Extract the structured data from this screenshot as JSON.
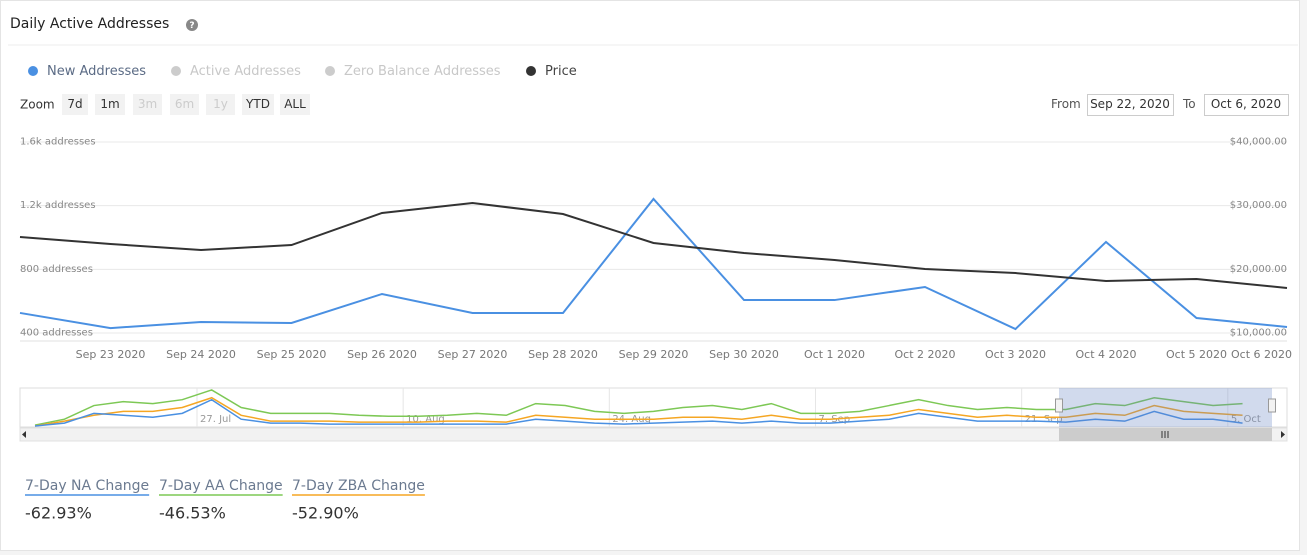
{
  "header": {
    "title": "Daily Active Addresses"
  },
  "range_selector": {
    "label": "Zoom",
    "buttons": [
      {
        "label": "7d",
        "enabled": true
      },
      {
        "label": "1m",
        "enabled": true
      },
      {
        "label": "3m",
        "enabled": false
      },
      {
        "label": "6m",
        "enabled": false
      },
      {
        "label": "1y",
        "enabled": false
      },
      {
        "label": "YTD",
        "enabled": true
      },
      {
        "label": "ALL",
        "enabled": true
      }
    ],
    "from_label": "From",
    "from": "Sep 22, 2020",
    "to_label": "To",
    "to": "Oct 6, 2020"
  },
  "chart_data": {
    "type": "line",
    "categories": [
      null,
      "Sep 23 2020",
      "Sep 24 2020",
      "Sep 25 2020",
      "Sep 26 2020",
      "Sep 27 2020",
      "Sep 28 2020",
      "Sep 29 2020",
      "Sep 30 2020",
      "Oct 1 2020",
      "Oct 2 2020",
      "Oct 3 2020",
      "Oct 4 2020",
      "Oct 5 2020",
      "Oct 6 2020"
    ],
    "series": [
      {
        "name": "New Addresses",
        "color": "#4a90e2",
        "visible": true,
        "values": [
          526,
          431,
          469,
          463,
          645,
          526,
          526,
          1242,
          607,
          607,
          689,
          425,
          972,
          494,
          438
        ]
      },
      {
        "name": "Active Addresses",
        "color": "#cccccc",
        "visible": false
      },
      {
        "name": "Zero Balance Addresses",
        "color": "#cccccc",
        "visible": false
      },
      {
        "name": "Price",
        "color": "#333333",
        "visible": true,
        "axis": "y2",
        "values": [
          25080,
          23980,
          23040,
          23820,
          28850,
          30420,
          28690,
          24140,
          22570,
          21470,
          20050,
          19420,
          18170,
          18480,
          17070
        ]
      }
    ],
    "ylim": [
      400,
      1600
    ],
    "yticks": [
      {
        "value": 400,
        "label": "400 addresses"
      },
      {
        "value": 800,
        "label": "800 addresses"
      },
      {
        "value": 1200,
        "label": "1.2k addresses"
      },
      {
        "value": 1600,
        "label": "1.6k addresses"
      }
    ],
    "y2lim": [
      10000,
      40000
    ],
    "y2ticks": [
      {
        "value": 10000,
        "label": "$10,000.00"
      },
      {
        "value": 20000,
        "label": "$20,000.00"
      },
      {
        "value": 30000,
        "label": "$30,000.00"
      },
      {
        "value": 40000,
        "label": "$40,000.00"
      }
    ],
    "grid": true
  },
  "navigator": {
    "type": "line",
    "ylim": [
      0,
      40
    ],
    "xlim": [
      0,
      41
    ],
    "xticks": [
      {
        "value": 5.5,
        "label": "27. Jul"
      },
      {
        "value": 12.5,
        "label": "10. Aug"
      },
      {
        "value": 19.5,
        "label": "24. Aug"
      },
      {
        "value": 26.5,
        "label": "7. Sep"
      },
      {
        "value": 33.5,
        "label": "21. Sep"
      },
      {
        "value": 40.5,
        "label": "5. Oct"
      }
    ],
    "series": [
      {
        "color": "#7dc855",
        "values": [
          2,
          8,
          22,
          26,
          24,
          28,
          38,
          20,
          14,
          14,
          14,
          12,
          11,
          11,
          12,
          14,
          12,
          24,
          22,
          16,
          14,
          16,
          20,
          22,
          18,
          24,
          14,
          14,
          16,
          22,
          28,
          22,
          18,
          20,
          18,
          18,
          24,
          22,
          30,
          26,
          22,
          24
        ]
      },
      {
        "color": "#f5a623",
        "values": [
          1,
          6,
          12,
          16,
          16,
          20,
          30,
          12,
          6,
          6,
          6,
          5,
          5,
          5,
          6,
          6,
          5,
          12,
          10,
          8,
          8,
          8,
          10,
          10,
          8,
          12,
          8,
          8,
          10,
          12,
          18,
          14,
          10,
          12,
          10,
          10,
          14,
          12,
          22,
          16,
          14,
          12
        ]
      },
      {
        "color": "#4a90e2",
        "values": [
          1,
          4,
          14,
          12,
          10,
          14,
          28,
          8,
          4,
          4,
          3,
          3,
          3,
          3,
          3,
          3,
          3,
          8,
          6,
          4,
          3,
          4,
          5,
          6,
          4,
          6,
          4,
          4,
          6,
          8,
          14,
          10,
          6,
          6,
          6,
          5,
          8,
          6,
          16,
          8,
          8,
          4
        ]
      }
    ]
  },
  "stats": [
    {
      "label": "7-Day NA Change",
      "value": "-62.93%",
      "color": "#4a90e2"
    },
    {
      "label": "7-Day AA Change",
      "value": "-46.53%",
      "color": "#7dc855"
    },
    {
      "label": "7-Day ZBA Change",
      "value": "-52.90%",
      "color": "#f5a623"
    }
  ]
}
